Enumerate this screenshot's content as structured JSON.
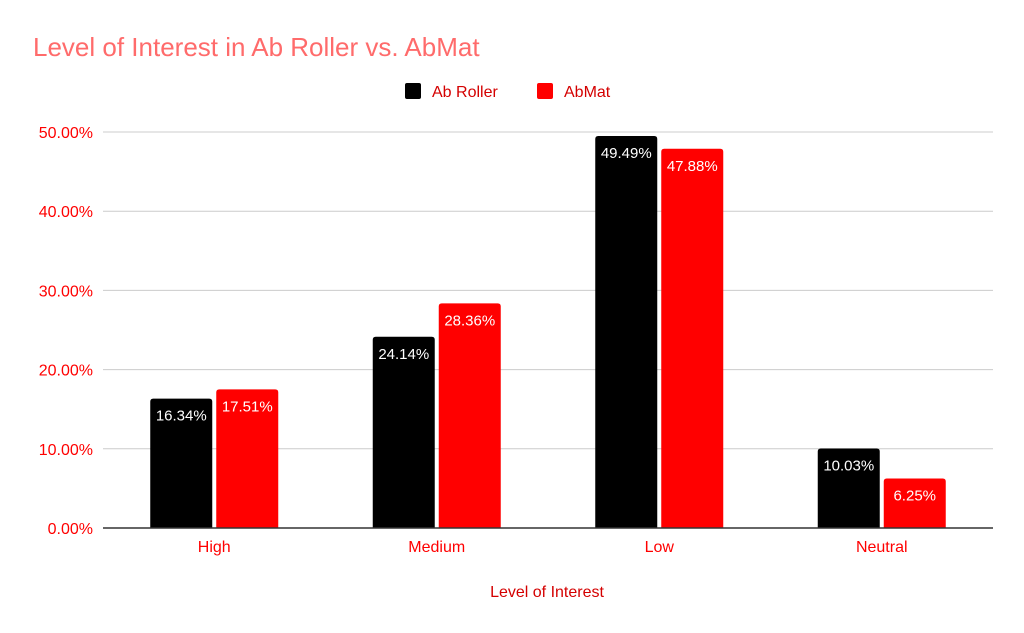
{
  "colors": {
    "title": "#ff6b6b",
    "text": "#ff0000",
    "grid": "#cccccc",
    "axis": "#333333"
  },
  "chart_data": {
    "type": "bar",
    "title": "Level of Interest in Ab Roller vs. AbMat",
    "xlabel": "Level of Interest",
    "ylabel": "",
    "categories": [
      "High",
      "Medium",
      "Low",
      "Neutral"
    ],
    "series": [
      {
        "name": "Ab Roller",
        "color": "#000000",
        "values": [
          16.34,
          24.14,
          49.49,
          10.03
        ],
        "labels": [
          "16.34%",
          "24.14%",
          "49.49%",
          "10.03%"
        ]
      },
      {
        "name": "AbMat",
        "color": "#ff0000",
        "values": [
          17.51,
          28.36,
          47.88,
          6.25
        ],
        "labels": [
          "17.51%",
          "28.36%",
          "47.88%",
          "6.25%"
        ]
      }
    ],
    "ylim": [
      0,
      50
    ],
    "yticks": [
      "0.00%",
      "10.00%",
      "20.00%",
      "30.00%",
      "40.00%",
      "50.00%"
    ],
    "grid": true,
    "legend": "top-center"
  }
}
